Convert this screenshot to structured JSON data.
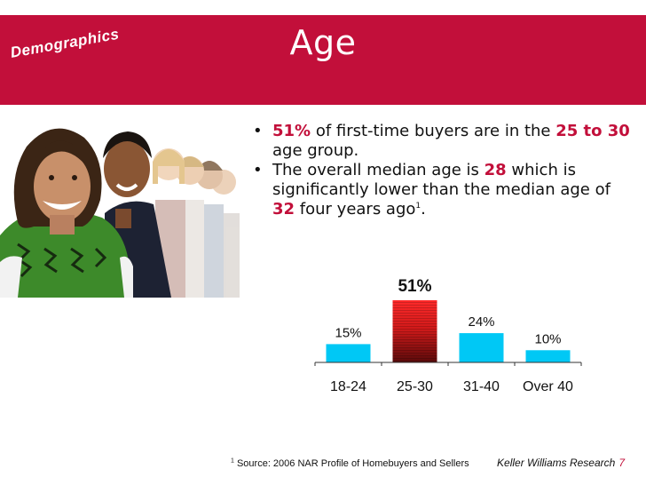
{
  "slide": {
    "title": "Age",
    "section_tag": "Demographics"
  },
  "bullets": [
    {
      "parts": [
        {
          "text": "51%",
          "hl": true
        },
        {
          "text": " of first-time buyers are in the "
        },
        {
          "text": "25 to 30",
          "hl": true
        },
        {
          "text": " age group."
        }
      ]
    },
    {
      "parts": [
        {
          "text": "The overall median age is "
        },
        {
          "text": "28",
          "hl": true
        },
        {
          "text": " which is significantly lower than the median age of "
        },
        {
          "text": "32",
          "hl": true
        },
        {
          "text": " four years ago"
        },
        {
          "text": "1",
          "sup": true
        },
        {
          "text": "."
        }
      ]
    }
  ],
  "chart_data": {
    "type": "bar",
    "categories": [
      "18-24",
      "25-30",
      "31-40",
      "Over 40"
    ],
    "values": [
      15,
      51,
      24,
      10
    ],
    "value_labels": [
      "15%",
      "51%",
      "24%",
      "10%"
    ],
    "highlight_index": 1,
    "ylim": [
      0,
      51
    ],
    "grid": false,
    "legend": "none",
    "colors": {
      "default": "#00c8f5",
      "highlight": "#c20f3a"
    }
  },
  "footnote": {
    "marker": "1",
    "text": "Source: 2006 NAR Profile of Homebuyers and Sellers"
  },
  "credit": {
    "text": "Keller Williams Research",
    "page": "7"
  },
  "colors": {
    "brand_red": "#c20f3a",
    "bar_blue": "#00c8f5"
  }
}
